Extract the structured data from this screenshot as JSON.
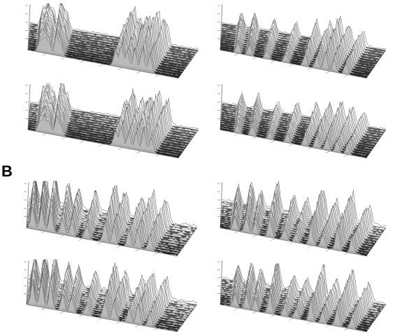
{
  "figure": {
    "panel_b_label": "B"
  },
  "panels": [
    {
      "id": "a-top-left",
      "peaks": [
        [
          0.08,
          0.55
        ],
        [
          0.11,
          0.72
        ],
        [
          0.14,
          0.5
        ],
        [
          0.19,
          0.85
        ],
        [
          0.22,
          0.45
        ],
        [
          0.58,
          0.6
        ],
        [
          0.62,
          0.95
        ],
        [
          0.66,
          0.7
        ],
        [
          0.71,
          0.9
        ],
        [
          0.76,
          1.0
        ],
        [
          0.81,
          0.75
        ]
      ],
      "noise": 0.22,
      "seed": 3
    },
    {
      "id": "a-top-right",
      "peaks": [
        [
          0.12,
          0.4
        ],
        [
          0.2,
          0.45
        ],
        [
          0.32,
          0.35
        ],
        [
          0.45,
          0.4
        ],
        [
          0.58,
          0.5
        ],
        [
          0.66,
          0.55
        ],
        [
          0.72,
          0.75
        ],
        [
          0.78,
          0.6
        ],
        [
          0.86,
          0.45
        ]
      ],
      "noise": 0.2,
      "seed": 7
    },
    {
      "id": "a-bottom-left",
      "peaks": [
        [
          0.08,
          0.5
        ],
        [
          0.11,
          0.68
        ],
        [
          0.14,
          0.48
        ],
        [
          0.19,
          0.8
        ],
        [
          0.22,
          0.42
        ],
        [
          0.58,
          0.55
        ],
        [
          0.62,
          0.85
        ],
        [
          0.67,
          0.65
        ],
        [
          0.72,
          0.8
        ],
        [
          0.77,
          0.9
        ],
        [
          0.82,
          0.7
        ]
      ],
      "noise": 0.22,
      "seed": 11
    },
    {
      "id": "a-bottom-right",
      "peaks": [
        [
          0.12,
          0.35
        ],
        [
          0.22,
          0.42
        ],
        [
          0.34,
          0.3
        ],
        [
          0.46,
          0.38
        ],
        [
          0.58,
          0.45
        ],
        [
          0.66,
          0.55
        ],
        [
          0.73,
          0.6
        ],
        [
          0.8,
          0.5
        ],
        [
          0.87,
          0.4
        ]
      ],
      "noise": 0.2,
      "seed": 13
    },
    {
      "id": "b-top-left",
      "peaks": [
        [
          0.04,
          0.9
        ],
        [
          0.1,
          1.0
        ],
        [
          0.16,
          0.95
        ],
        [
          0.24,
          0.7
        ],
        [
          0.3,
          0.6
        ],
        [
          0.4,
          0.55
        ],
        [
          0.52,
          0.85
        ],
        [
          0.58,
          0.7
        ],
        [
          0.68,
          0.6
        ],
        [
          0.74,
          0.8
        ],
        [
          0.82,
          0.65
        ]
      ],
      "noise": 0.45,
      "seed": 17
    },
    {
      "id": "b-top-right",
      "peaks": [
        [
          0.1,
          0.55
        ],
        [
          0.18,
          0.7
        ],
        [
          0.24,
          0.5
        ],
        [
          0.34,
          0.85
        ],
        [
          0.44,
          0.5
        ],
        [
          0.52,
          0.45
        ],
        [
          0.62,
          0.9
        ],
        [
          0.7,
          0.55
        ],
        [
          0.8,
          0.85
        ],
        [
          0.9,
          0.6
        ]
      ],
      "noise": 0.35,
      "seed": 19
    },
    {
      "id": "b-bottom-left",
      "peaks": [
        [
          0.04,
          0.85
        ],
        [
          0.1,
          0.95
        ],
        [
          0.16,
          0.9
        ],
        [
          0.24,
          0.65
        ],
        [
          0.3,
          0.6
        ],
        [
          0.4,
          0.5
        ],
        [
          0.52,
          0.8
        ],
        [
          0.58,
          0.65
        ],
        [
          0.68,
          0.55
        ],
        [
          0.74,
          0.75
        ],
        [
          0.82,
          0.6
        ]
      ],
      "noise": 0.42,
      "seed": 23
    },
    {
      "id": "b-bottom-right",
      "peaks": [
        [
          0.1,
          0.5
        ],
        [
          0.18,
          0.65
        ],
        [
          0.24,
          0.45
        ],
        [
          0.34,
          0.8
        ],
        [
          0.44,
          0.45
        ],
        [
          0.52,
          0.4
        ],
        [
          0.62,
          0.85
        ],
        [
          0.7,
          0.5
        ],
        [
          0.8,
          0.8
        ],
        [
          0.9,
          0.55
        ]
      ],
      "noise": 0.33,
      "seed": 29
    }
  ]
}
